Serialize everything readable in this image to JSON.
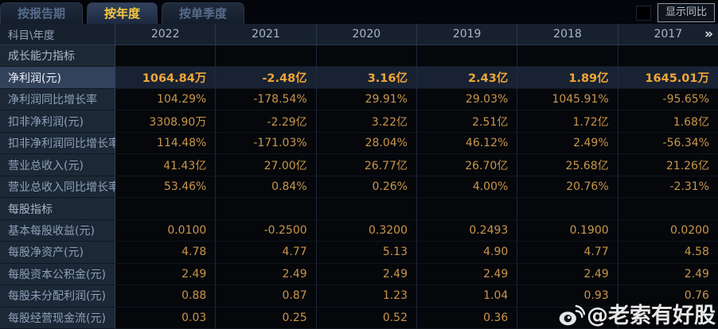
{
  "tabs": [
    {
      "label": "按报告期",
      "active": false
    },
    {
      "label": "按年度",
      "active": true
    },
    {
      "label": "按单季度",
      "active": false
    }
  ],
  "controls": {
    "yoy_label": "显示同比"
  },
  "table": {
    "corner_label": "科目\\年度",
    "years": [
      "2022",
      "2021",
      "2020",
      "2019",
      "2018",
      "2017"
    ],
    "more_icon": "»",
    "rows": [
      {
        "type": "section",
        "label": "成长能力指标",
        "values": [
          "",
          "",
          "",
          "",
          "",
          ""
        ]
      },
      {
        "type": "data",
        "highlight": true,
        "label": "净利润(元)",
        "values": [
          "1064.84万",
          "-2.48亿",
          "3.16亿",
          "2.43亿",
          "1.89亿",
          "1645.01万"
        ]
      },
      {
        "type": "data",
        "label": "净利润同比增长率",
        "values": [
          "104.29%",
          "-178.54%",
          "29.91%",
          "29.03%",
          "1045.91%",
          "-95.65%"
        ]
      },
      {
        "type": "data",
        "label": "扣非净利润(元)",
        "values": [
          "3308.90万",
          "-2.29亿",
          "3.22亿",
          "2.51亿",
          "1.72亿",
          "1.68亿"
        ]
      },
      {
        "type": "data",
        "label": "扣非净利润同比增长率",
        "values": [
          "114.48%",
          "-171.03%",
          "28.04%",
          "46.12%",
          "2.49%",
          "-56.34%"
        ]
      },
      {
        "type": "data",
        "label": "营业总收入(元)",
        "values": [
          "41.43亿",
          "27.00亿",
          "26.77亿",
          "26.70亿",
          "25.68亿",
          "21.26亿"
        ]
      },
      {
        "type": "data",
        "label": "营业总收入同比增长率",
        "values": [
          "53.46%",
          "0.84%",
          "0.26%",
          "4.00%",
          "20.76%",
          "-2.31%"
        ]
      },
      {
        "type": "section",
        "label": "每股指标",
        "values": [
          "",
          "",
          "",
          "",
          "",
          ""
        ]
      },
      {
        "type": "data",
        "label": "基本每股收益(元)",
        "values": [
          "0.0100",
          "-0.2500",
          "0.3200",
          "0.2493",
          "0.1900",
          "0.0200"
        ]
      },
      {
        "type": "data",
        "label": "每股净资产(元)",
        "values": [
          "4.78",
          "4.77",
          "5.13",
          "4.90",
          "4.77",
          "4.58"
        ]
      },
      {
        "type": "data",
        "label": "每股资本公积金(元)",
        "values": [
          "2.49",
          "2.49",
          "2.49",
          "2.49",
          "2.49",
          "2.49"
        ]
      },
      {
        "type": "data",
        "label": "每股未分配利润(元)",
        "values": [
          "0.88",
          "0.87",
          "1.23",
          "1.04",
          "0.93",
          "0.76"
        ]
      },
      {
        "type": "data",
        "label": "每股经营现金流(元)",
        "values": [
          "0.03",
          "0.25",
          "0.52",
          "0.36",
          "",
          ""
        ]
      }
    ]
  },
  "watermark": {
    "text": "@老索有好股"
  },
  "colors": {
    "accent_gold": "#f6c93e",
    "value_gold": "#c9964a",
    "highlight_value_gold": "#f1a636",
    "highlight_row_bg": "#33425b",
    "label_col_bg": "#1d2836",
    "header_bg": "#17202d"
  }
}
